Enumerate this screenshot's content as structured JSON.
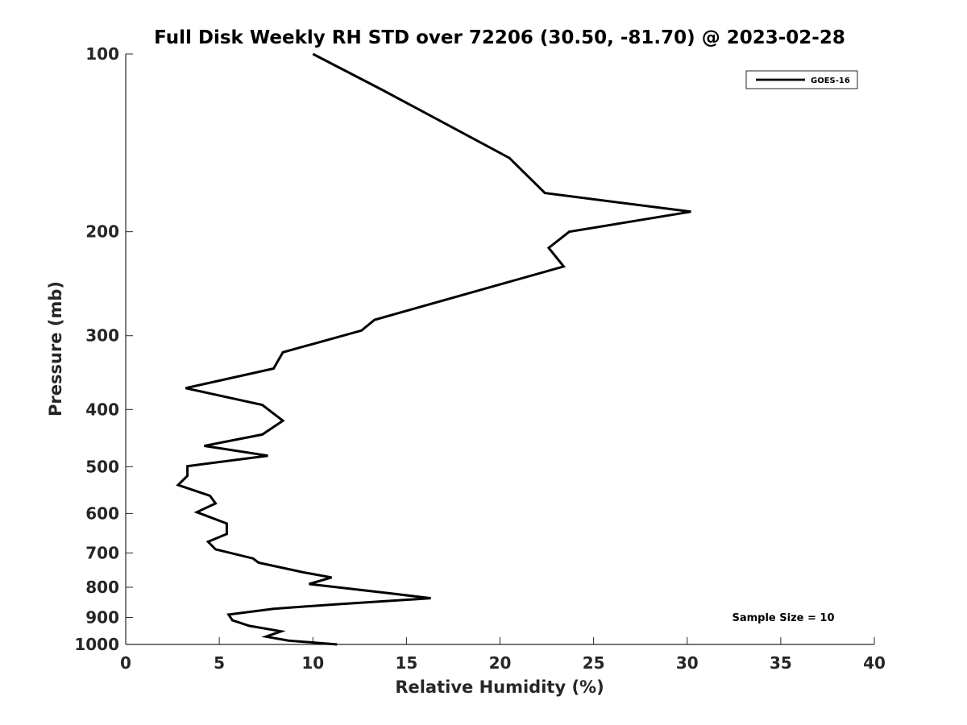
{
  "chart_data": {
    "type": "line",
    "title": "Full Disk Weekly RH STD over 72206 (30.50, -81.70) @ 2023-02-28",
    "xlabel": "Relative Humidity (%)",
    "ylabel": "Pressure (mb)",
    "xlim": [
      0,
      40
    ],
    "ylim": [
      100,
      1000
    ],
    "y_scale": "log",
    "y_reversed": true,
    "grid": false,
    "x_ticks": [
      "0",
      "5",
      "10",
      "15",
      "20",
      "25",
      "30",
      "35",
      "40"
    ],
    "y_ticks": [
      "100",
      "200",
      "300",
      "400",
      "500",
      "600",
      "700",
      "800",
      "900",
      "1000"
    ],
    "legend_position": "top-right",
    "annotation": "Sample Size = 10",
    "series": [
      {
        "name": "GOES-16",
        "color": "#000000",
        "x": [
          10.0,
          13.7,
          20.5,
          22.4,
          30.2,
          23.7,
          22.6,
          23.4,
          13.3,
          12.6,
          8.4,
          7.9,
          3.2,
          7.3,
          8.4,
          7.3,
          4.2,
          7.6,
          3.3,
          3.3,
          2.8,
          4.5,
          4.8,
          3.8,
          5.4,
          5.4,
          4.4,
          4.8,
          6.8,
          7.1,
          9.5,
          11.0,
          9.8,
          14.2,
          16.3,
          11.3,
          7.9,
          5.5,
          5.7,
          6.6,
          8.3,
          7.5,
          8.7,
          11.3
        ],
        "y": [
          100,
          115,
          150,
          172,
          185,
          200,
          213,
          229,
          282,
          294,
          320,
          341,
          368,
          393,
          418,
          441,
          461,
          479,
          499,
          518,
          537,
          560,
          577,
          597,
          624,
          650,
          670,
          690,
          715,
          727,
          755,
          770,
          790,
          820,
          835,
          855,
          870,
          890,
          910,
          930,
          950,
          970,
          985,
          1000
        ]
      }
    ]
  }
}
